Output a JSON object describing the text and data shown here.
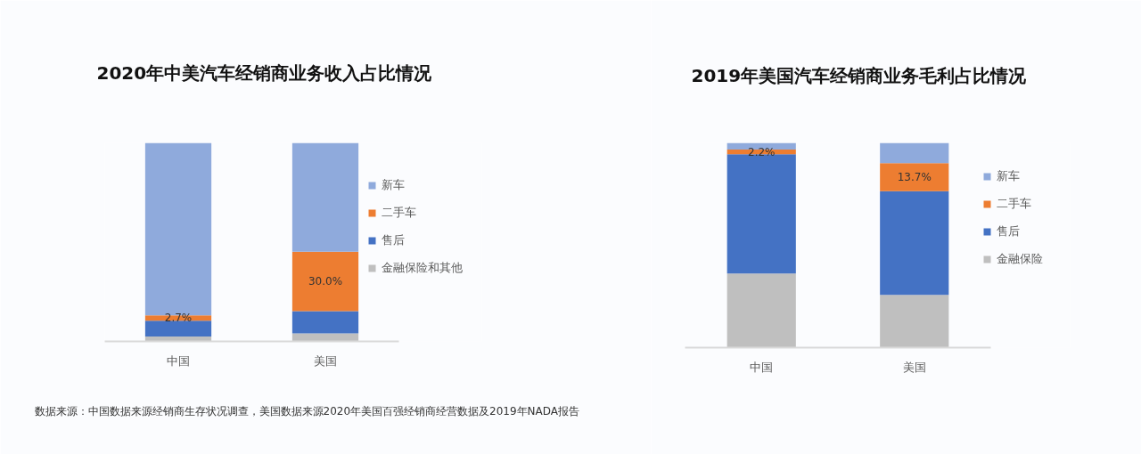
{
  "chart_data": [
    {
      "type": "bar",
      "title": "2020年中美汽车经销商业务收入占比情况",
      "categories": [
        "中国",
        "美国"
      ],
      "stacked": true,
      "ylim": [
        0,
        100
      ],
      "tick_labels": "x",
      "legend": "right",
      "series": [
        {
          "name": "金融保险和其他",
          "color": "#bfbfbf",
          "values": [
            2.5,
            4.0
          ]
        },
        {
          "name": "售后",
          "color": "#4472c4",
          "values": [
            7.9,
            11.2
          ]
        },
        {
          "name": "二手车",
          "color": "#ed7d31",
          "values": [
            2.7,
            30.0
          ],
          "value_labels": [
            "2.7%",
            "30.0%"
          ]
        },
        {
          "name": "新车",
          "color": "#8faadc",
          "values": [
            86.9,
            54.8
          ]
        }
      ],
      "annotations": [
        "数据来源：中国数据来源经销商生存状况调查，美国数据来源2020年美国百强经销商经营数据及2019年NADA报告"
      ]
    },
    {
      "type": "bar",
      "title": "2019年美国汽车经销商业务毛利占比情况",
      "categories": [
        "中国",
        "美国"
      ],
      "stacked": true,
      "ylim": [
        0,
        100
      ],
      "tick_labels": "x",
      "legend": "right",
      "series": [
        {
          "name": "金融保险",
          "color": "#bfbfbf",
          "values": [
            36.2,
            25.8
          ]
        },
        {
          "name": "售后",
          "color": "#4472c4",
          "values": [
            58.3,
            50.6
          ]
        },
        {
          "name": "二手车",
          "color": "#ed7d31",
          "values": [
            2.2,
            13.7
          ],
          "value_labels": [
            "2.2%",
            "13.7%"
          ]
        },
        {
          "name": "新车",
          "color": "#8faadc",
          "values": [
            3.3,
            9.9
          ]
        }
      ]
    }
  ]
}
